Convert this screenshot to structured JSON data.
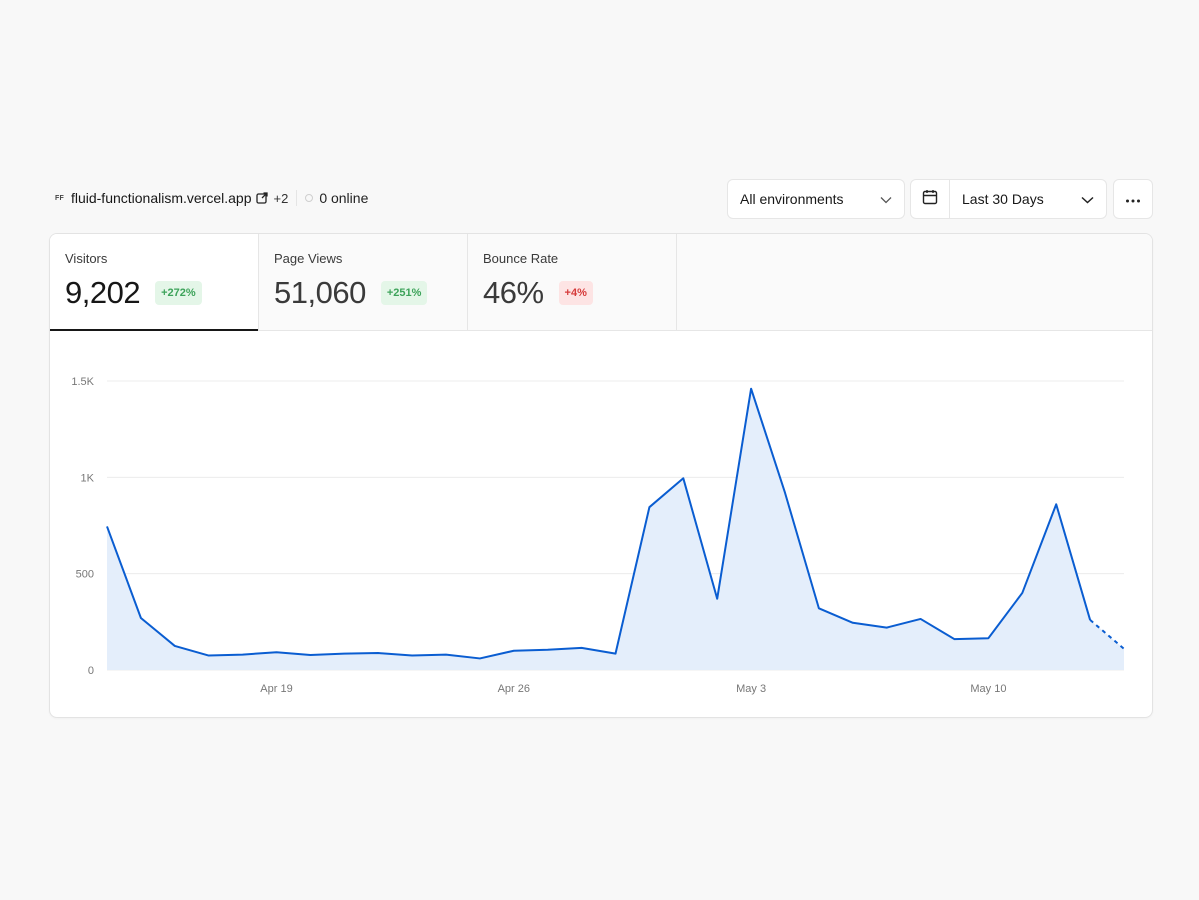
{
  "project": {
    "initials": "FF",
    "name": "fluid-functionalism.vercel.app",
    "extra_count": "+2",
    "online": "0 online"
  },
  "controls": {
    "environment": "All environments",
    "date_range": "Last 30 Days"
  },
  "tabs": [
    {
      "label": "Visitors",
      "value": "9,202",
      "change": "+272%",
      "trend": "up",
      "active": true
    },
    {
      "label": "Page Views",
      "value": "51,060",
      "change": "+251%",
      "trend": "up",
      "active": false
    },
    {
      "label": "Bounce Rate",
      "value": "46%",
      "change": "+4%",
      "trend": "down",
      "active": false
    }
  ],
  "colors": {
    "line": "#0a5dd1",
    "fill": "#e3edfb",
    "positive": "#3da35a",
    "negative": "#d63b3b"
  },
  "chart_data": {
    "type": "area",
    "x": [
      "Apr 14",
      "Apr 15",
      "Apr 16",
      "Apr 17",
      "Apr 18",
      "Apr 19",
      "Apr 20",
      "Apr 21",
      "Apr 22",
      "Apr 23",
      "Apr 24",
      "Apr 25",
      "Apr 26",
      "Apr 27",
      "Apr 28",
      "Apr 29",
      "Apr 30",
      "May 1",
      "May 2",
      "May 3",
      "May 4",
      "May 5",
      "May 6",
      "May 7",
      "May 8",
      "May 9",
      "May 10",
      "May 11",
      "May 12",
      "May 13",
      "May 14"
    ],
    "series": [
      {
        "values": [
          745,
          270,
          125,
          75,
          80,
          92,
          78,
          85,
          88,
          75,
          80,
          60,
          100,
          105,
          115,
          85,
          845,
          995,
          370,
          1460,
          920,
          320,
          245,
          220,
          265,
          160,
          165,
          400,
          860,
          260,
          110
        ]
      }
    ],
    "dashed_last_segment": true,
    "ylim": [
      0,
      1500
    ],
    "y_ticks": [
      0,
      500,
      1000,
      1500
    ],
    "y_tick_labels": [
      "0",
      "500",
      "1K",
      "1.5K"
    ],
    "x_tick_labels": [
      "Apr 19",
      "Apr 26",
      "May 3",
      "May 10"
    ],
    "x_tick_index": [
      5,
      12,
      19,
      26
    ],
    "grid": true
  }
}
